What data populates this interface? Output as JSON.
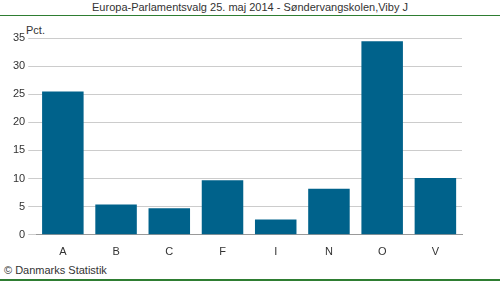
{
  "chart_data": {
    "type": "bar",
    "title": "Europa-Parlamentsvalg 25. maj 2014 - Søndervangskolen,Viby J",
    "y_label": "Pct.",
    "source": "© Danmarks Statistik",
    "categories": [
      "A",
      "B",
      "C",
      "F",
      "I",
      "N",
      "O",
      "V"
    ],
    "values": [
      25.5,
      5.4,
      4.7,
      9.7,
      2.7,
      8.2,
      34.4,
      10.1
    ],
    "color": "#00628b",
    "ylim": [
      0,
      35
    ],
    "yticks": [
      0,
      5,
      10,
      15,
      20,
      25,
      30,
      35
    ],
    "grid": true
  }
}
